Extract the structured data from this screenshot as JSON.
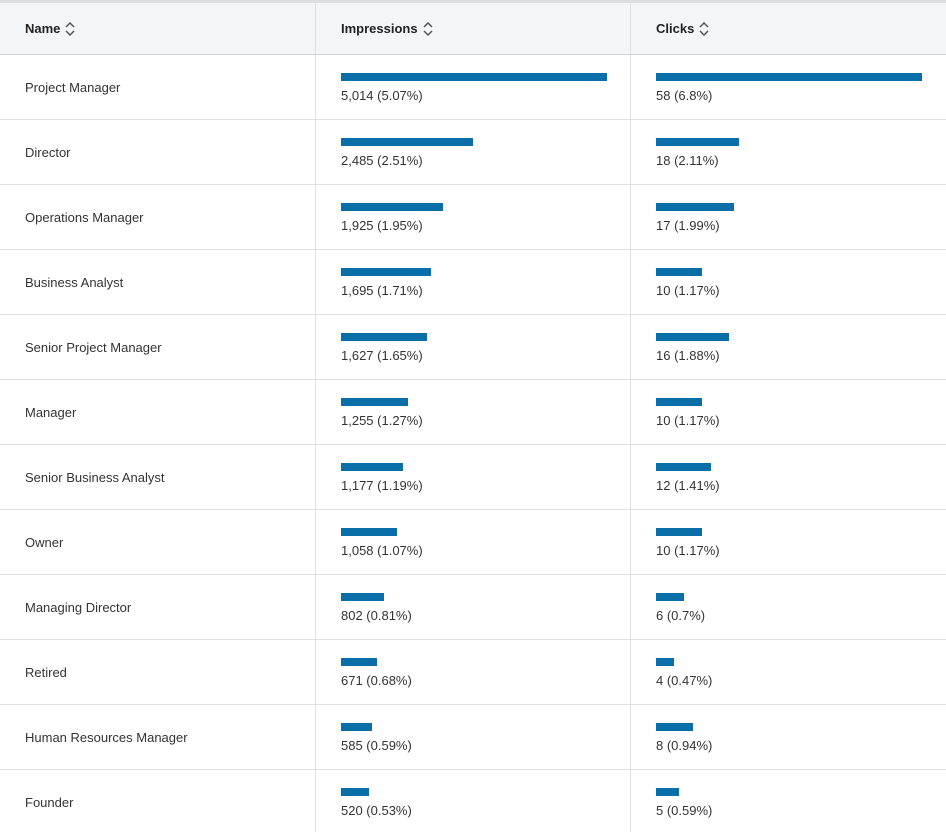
{
  "table": {
    "headers": [
      "Name",
      "Impressions",
      "Clicks"
    ],
    "rows": [
      {
        "name": "Project Manager",
        "impressions": {
          "value": 5014,
          "label": "5,014 (5.07%)"
        },
        "clicks": {
          "value": 58,
          "label": "58 (6.8%)"
        }
      },
      {
        "name": "Director",
        "impressions": {
          "value": 2485,
          "label": "2,485 (2.51%)"
        },
        "clicks": {
          "value": 18,
          "label": "18 (2.11%)"
        }
      },
      {
        "name": "Operations Manager",
        "impressions": {
          "value": 1925,
          "label": "1,925 (1.95%)"
        },
        "clicks": {
          "value": 17,
          "label": "17 (1.99%)"
        }
      },
      {
        "name": "Business Analyst",
        "impressions": {
          "value": 1695,
          "label": "1,695 (1.71%)"
        },
        "clicks": {
          "value": 10,
          "label": "10 (1.17%)"
        }
      },
      {
        "name": "Senior Project Manager",
        "impressions": {
          "value": 1627,
          "label": "1,627 (1.65%)"
        },
        "clicks": {
          "value": 16,
          "label": "16 (1.88%)"
        }
      },
      {
        "name": "Manager",
        "impressions": {
          "value": 1255,
          "label": "1,255 (1.27%)"
        },
        "clicks": {
          "value": 10,
          "label": "10 (1.17%)"
        }
      },
      {
        "name": "Senior Business Analyst",
        "impressions": {
          "value": 1177,
          "label": "1,177 (1.19%)"
        },
        "clicks": {
          "value": 12,
          "label": "12 (1.41%)"
        }
      },
      {
        "name": "Owner",
        "impressions": {
          "value": 1058,
          "label": "1,058 (1.07%)"
        },
        "clicks": {
          "value": 10,
          "label": "10 (1.17%)"
        }
      },
      {
        "name": "Managing Director",
        "impressions": {
          "value": 802,
          "label": "802 (0.81%)"
        },
        "clicks": {
          "value": 6,
          "label": "6 (0.7%)"
        }
      },
      {
        "name": "Retired",
        "impressions": {
          "value": 671,
          "label": "671 (0.68%)"
        },
        "clicks": {
          "value": 4,
          "label": "4 (0.47%)"
        }
      },
      {
        "name": "Human Resources Manager",
        "impressions": {
          "value": 585,
          "label": "585 (0.59%)"
        },
        "clicks": {
          "value": 8,
          "label": "8 (0.94%)"
        }
      },
      {
        "name": "Founder",
        "impressions": {
          "value": 520,
          "label": "520 (0.53%)"
        },
        "clicks": {
          "value": 5,
          "label": "5 (0.59%)"
        }
      }
    ]
  }
}
